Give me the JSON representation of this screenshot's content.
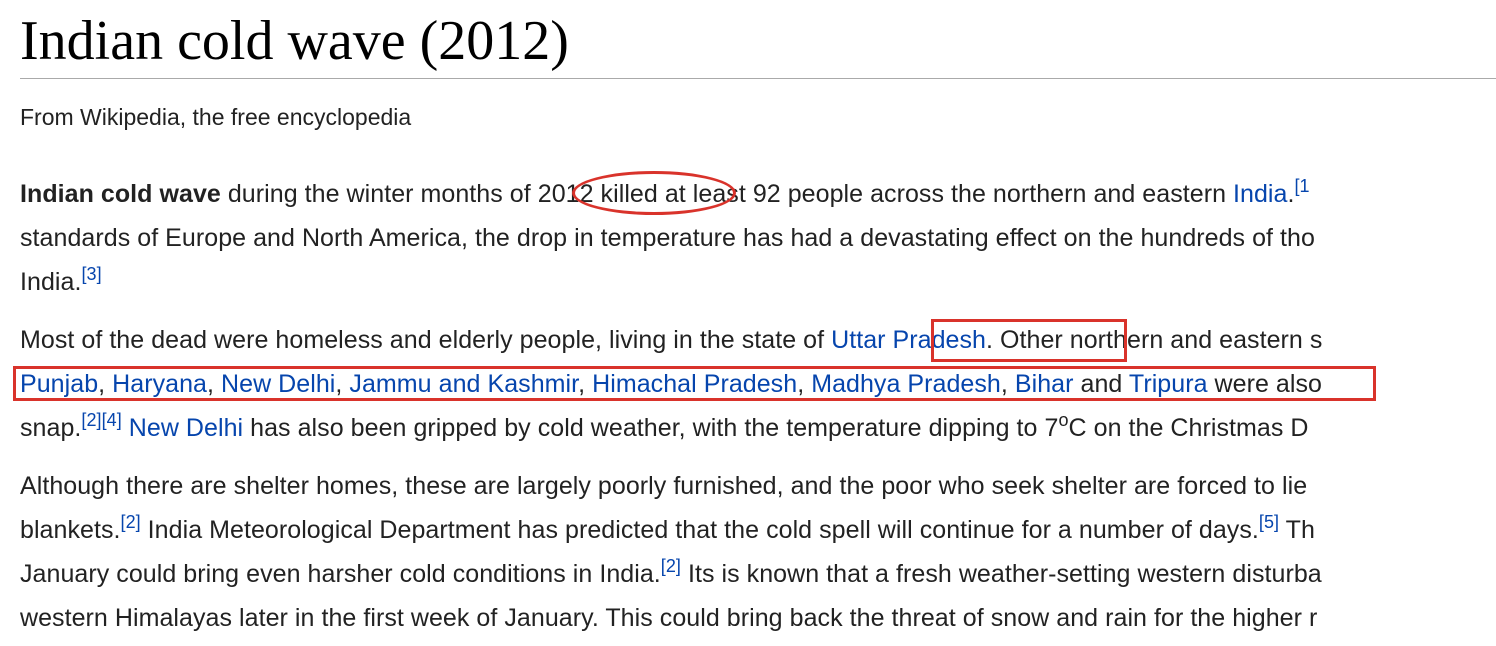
{
  "article": {
    "title": "Indian cold wave (2012)",
    "tagline": "From Wikipedia, the free encyclopedia"
  },
  "p1": {
    "l1_bold": "Indian cold wave",
    "l1_a": " during the winter months of 2012 killed at least 92 people across the northern and eastern ",
    "l1_link": "India",
    "l1_b": ".",
    "l1_ref": "[1",
    "l2": "standards of Europe and North America, the drop in temperature has had a devastating effect on the hundreds of tho",
    "l3_a": "India.",
    "l3_ref": "[3]"
  },
  "p2": {
    "l1_a": "Most of the dead were homeless and elderly people, living in the state of ",
    "l1_link": "Uttar Pradesh",
    "l1_b": ". Other northern and eastern s",
    "l2_links": [
      "Punjab",
      "Haryana",
      "New Delhi",
      "Jammu and Kashmir",
      "Himachal Pradesh",
      "Madhya Pradesh",
      "Bihar",
      "Tripura"
    ],
    "l2_sep": ", ",
    "l2_and": " and ",
    "l2_tail": " were also",
    "l3_a": "snap.",
    "l3_ref1": "[2]",
    "l3_ref2": "[4]",
    "l3_space": " ",
    "l3_link": "New Delhi",
    "l3_b": " has also been gripped by cold weather, with the temperature dipping to 7",
    "l3_deg": "o",
    "l3_c": "C on the Christmas D"
  },
  "p3": {
    "l1": "Although there are shelter homes, these are largely poorly furnished, and the poor who seek shelter are forced to lie ",
    "l2_a": "blankets.",
    "l2_ref": "[2]",
    "l2_b": " India Meteorological Department has predicted that the cold spell will continue for a number of days.",
    "l2_ref2": "[5]",
    "l2_c": " Th",
    "l3_a": "January could bring even harsher cold conditions in India.",
    "l3_ref": "[2]",
    "l3_b": " Its is known that a fresh weather-setting western disturba",
    "l4": "western Himalayas later in the first week of January. This could bring back the threat of snow and rain for the higher r"
  },
  "annotations": {
    "color": "#d9332b",
    "shapes": [
      "ellipse",
      "rectangle",
      "rectangle"
    ]
  }
}
